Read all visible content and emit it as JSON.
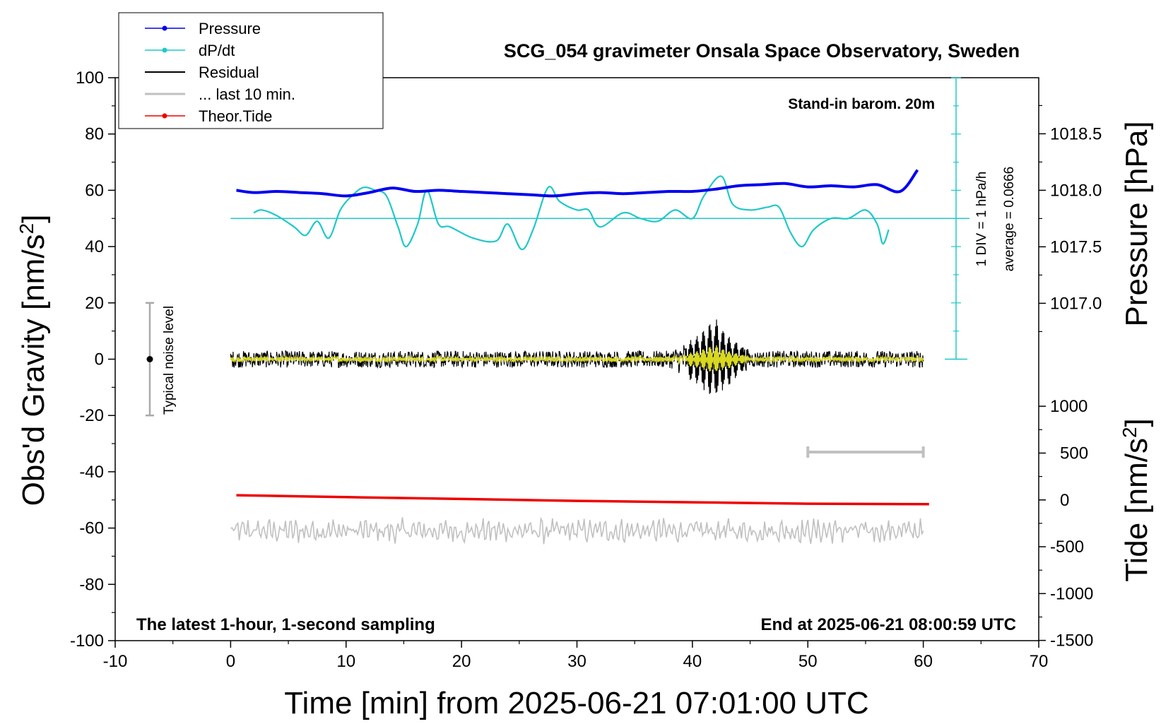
{
  "chart_data": {
    "type": "line",
    "title": "SCG_054 gravimeter Onsala Space Observatory, Sweden",
    "xlabel": "Time [min] from 2025-06-21 07:01:00 UTC",
    "ylabel": "Obs'd Gravity [nm/s",
    "ylabel_sup": "2",
    "ylabel_end": "]",
    "right_ylabel_pressure": "Pressure [hPa]",
    "right_ylabel_tide": "Tide [nm/s",
    "right_ylabel_tide_sup": "2",
    "right_ylabel_tide_end": "]",
    "xlim": [
      -10,
      70
    ],
    "ylim": [
      -100,
      100
    ],
    "pressure_ylim": [
      1016.5,
      1019.0
    ],
    "tide_ylim": [
      -1500,
      1000
    ],
    "x_ticks": [
      "-10",
      "0",
      "10",
      "20",
      "30",
      "40",
      "50",
      "60",
      "70"
    ],
    "y_ticks": [
      "100",
      "80",
      "60",
      "40",
      "20",
      "0",
      "-20",
      "-40",
      "-60",
      "-80",
      "-100"
    ],
    "pressure_ticks": [
      "1018.5",
      "1018.0",
      "1017.5",
      "1017.0"
    ],
    "tide_ticks": [
      "1000",
      "500",
      "0",
      "-500",
      "-1000",
      "-1500"
    ],
    "grid": false,
    "legend_position": "top-left",
    "legend": [
      {
        "name": "Pressure",
        "color": "#0000ee",
        "marker": true
      },
      {
        "name": "dP/dt",
        "color": "#20c8c8",
        "marker": true
      },
      {
        "name": "Residual",
        "color": "#000000",
        "marker": false
      },
      {
        "name": "... last 10 min.",
        "color": "#c0c0c0",
        "marker": false
      },
      {
        "name": "Theor.Tide",
        "color": "#ee0000",
        "marker": true
      }
    ],
    "annotations": {
      "barometer": "Stand-in barom. 20m",
      "dpdt_scale": "1 DIV = 1 hPa/h",
      "dpdt_average": "average = 0.0666",
      "noise": "Typical noise level",
      "bottom_left": "The latest 1-hour, 1-second sampling",
      "bottom_right": "End at 2025-06-21 08:00:59 UTC"
    },
    "noise_bar": {
      "x": -7,
      "y_low": -20,
      "y_high": 20
    },
    "last10_bar": {
      "x_start": 50,
      "x_end": 60,
      "y": -33
    },
    "dpdt_baseline_y": 50,
    "series": [
      {
        "name": "Pressure",
        "axis": "pressure_hPa",
        "color": "#0000ee",
        "x": [
          0.5,
          2,
          4,
          6,
          8,
          10,
          12,
          14,
          16,
          18,
          20,
          22,
          24,
          26,
          28,
          30,
          32,
          34,
          36,
          38,
          40,
          42,
          44,
          46,
          48,
          50,
          52,
          54,
          56,
          58,
          59.5
        ],
        "values": [
          1018.0,
          1017.98,
          1017.99,
          1017.98,
          1017.97,
          1017.95,
          1017.98,
          1018.02,
          1017.99,
          1018.0,
          1017.99,
          1017.98,
          1017.97,
          1017.96,
          1017.95,
          1017.97,
          1017.98,
          1017.97,
          1017.98,
          1017.99,
          1017.99,
          1018.01,
          1018.04,
          1018.05,
          1018.06,
          1018.03,
          1018.04,
          1018.03,
          1018.05,
          1017.99,
          1018.18
        ]
      },
      {
        "name": "dP/dt",
        "axis": "left_nm",
        "color": "#20c8c8",
        "x": [
          2,
          2.7,
          4,
          5.5,
          6.5,
          7.5,
          8.5,
          9.5,
          10.5,
          11.5,
          12.5,
          13.5,
          14.5,
          15.2,
          16.2,
          17,
          18,
          19,
          21,
          23,
          24,
          25.2,
          26.2,
          27.5,
          28.5,
          30,
          31,
          32,
          34,
          35.5,
          37,
          38.5,
          40,
          41,
          42.5,
          43.5,
          45,
          46.5,
          47.5,
          48.5,
          49.5,
          50.5,
          52,
          53.5,
          55,
          56,
          56.5,
          57
        ],
        "values": [
          52,
          53,
          51,
          47,
          44,
          49,
          43,
          53,
          58,
          61,
          60,
          58,
          47,
          40,
          48,
          60,
          48,
          47,
          43,
          42,
          48,
          39,
          46,
          61,
          56,
          53,
          53,
          47,
          52,
          50,
          49,
          53,
          50,
          58,
          65,
          55,
          53,
          54,
          54,
          45,
          40,
          46,
          50,
          50,
          53,
          48,
          41,
          46
        ]
      },
      {
        "name": "Residual",
        "axis": "left_nm",
        "color": "#000000",
        "x": [
          0,
          60
        ],
        "values": [
          0,
          0
        ],
        "amplitude_note_envelope": [
          {
            "x": 0,
            "amp": 3
          },
          {
            "x": 38,
            "amp": 3
          },
          {
            "x": 40,
            "amp": 8
          },
          {
            "x": 42,
            "amp": 15
          },
          {
            "x": 43.5,
            "amp": 8
          },
          {
            "x": 45,
            "amp": 3
          },
          {
            "x": 60,
            "amp": 3
          }
        ]
      },
      {
        "name": "... last 10 min.",
        "axis": "left_nm",
        "color": "#c0c0c0",
        "x": [
          0,
          60
        ],
        "values": [
          -61,
          -61
        ],
        "amplitude_note": "oscillation approx +/- 4 nm/s2 around -61"
      },
      {
        "name": "Theor.Tide",
        "axis": "tide_nm",
        "color": "#ee0000",
        "x": [
          0.5,
          10,
          20,
          30,
          40,
          50,
          60.5
        ],
        "values": [
          50,
          30,
          10,
          -10,
          -25,
          -40,
          -45
        ]
      }
    ]
  }
}
